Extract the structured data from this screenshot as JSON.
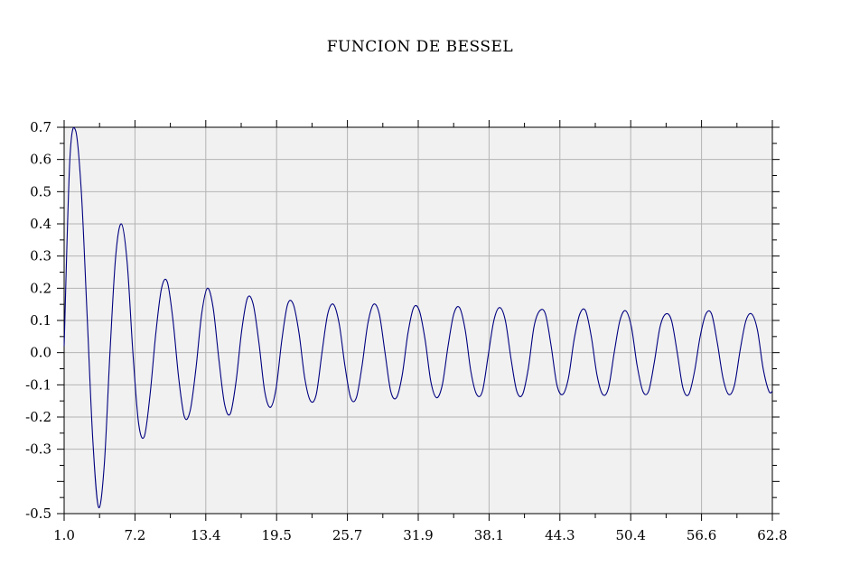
{
  "chart_data": {
    "type": "line",
    "title": "FUNCION DE BESSEL",
    "xlabel": "",
    "ylabel": "",
    "xlim": [
      1.0,
      62.8
    ],
    "ylim": [
      -0.5,
      0.7
    ],
    "x_tick_labels": [
      "1.0",
      "7.2",
      "13.4",
      "19.5",
      "25.7",
      "31.9",
      "38.1",
      "44.3",
      "50.4",
      "56.6",
      "62.8"
    ],
    "y_tick_labels": [
      "0.7",
      "0.6",
      "0.5",
      "0.4",
      "0.3",
      "0.2",
      "0.1",
      "0.0",
      "-0.1",
      "-0.2",
      "-0.3",
      "-0.5"
    ],
    "y_tick_values": [
      0.7,
      0.6,
      0.5,
      0.4,
      0.3,
      0.2,
      0.1,
      0.0,
      -0.1,
      -0.2,
      -0.3,
      -0.5
    ],
    "grid": true,
    "series": [
      {
        "color": "#000080",
        "x": [
          1.0,
          1.5,
          2.0,
          2.5,
          3.0,
          3.5,
          4.0,
          4.5,
          5.0,
          5.5,
          6.0,
          6.5,
          7.0,
          7.5,
          8.0,
          8.5,
          9.0,
          9.5,
          10.0,
          10.5,
          11.0,
          11.5,
          12.0,
          12.5,
          13.0,
          13.5,
          14.0,
          14.5,
          15.0,
          15.5,
          16.0,
          16.5,
          17.0,
          17.5,
          18.0,
          18.5,
          19.0,
          19.5,
          20.0,
          20.5,
          21.0,
          21.5,
          22.0,
          22.5,
          23.0,
          23.5,
          24.0,
          24.5,
          25.0,
          25.5,
          26.0,
          26.5,
          27.0,
          27.5,
          28.0,
          28.5,
          29.0,
          29.5,
          30.0,
          30.5,
          31.0,
          31.5,
          32.0,
          32.5,
          33.0,
          33.5,
          34.0,
          34.5,
          35.0,
          35.5,
          36.0,
          36.5,
          37.0,
          37.5,
          38.0,
          38.5,
          39.0,
          39.5,
          40.0,
          40.5,
          41.0,
          41.5,
          42.0,
          42.5,
          43.0,
          43.5,
          44.0,
          44.5,
          45.0,
          45.5,
          46.0,
          46.5,
          47.0,
          47.5,
          48.0,
          48.5,
          49.0,
          49.5,
          50.0,
          50.5,
          51.0,
          51.5,
          52.0,
          52.5,
          53.0,
          53.5,
          54.0,
          54.5,
          55.0,
          55.5,
          56.0,
          56.5,
          57.0,
          57.5,
          58.0,
          58.5,
          59.0,
          59.5,
          60.0,
          60.5,
          61.0,
          61.5,
          62.0,
          62.5,
          62.8
        ],
        "y": [
          0.02,
          0.6,
          0.69,
          0.5,
          0.12,
          -0.27,
          -0.48,
          -0.35,
          0.0,
          0.3,
          0.4,
          0.28,
          0.0,
          -0.22,
          -0.26,
          -0.13,
          0.06,
          0.2,
          0.22,
          0.1,
          -0.08,
          -0.2,
          -0.18,
          -0.05,
          0.12,
          0.2,
          0.14,
          -0.02,
          -0.16,
          -0.19,
          -0.09,
          0.07,
          0.17,
          0.15,
          0.03,
          -0.12,
          -0.17,
          -0.11,
          0.04,
          0.15,
          0.15,
          0.06,
          -0.08,
          -0.15,
          -0.13,
          0.0,
          0.12,
          0.15,
          0.09,
          -0.04,
          -0.14,
          -0.14,
          -0.04,
          0.09,
          0.15,
          0.12,
          0.0,
          -0.12,
          -0.14,
          -0.07,
          0.06,
          0.14,
          0.13,
          0.04,
          -0.09,
          -0.14,
          -0.1,
          0.02,
          0.12,
          0.14,
          0.07,
          -0.06,
          -0.13,
          -0.12,
          -0.01,
          0.1,
          0.14,
          0.1,
          -0.02,
          -0.12,
          -0.13,
          -0.05,
          0.08,
          0.13,
          0.12,
          0.02,
          -0.1,
          -0.13,
          -0.08,
          0.04,
          0.12,
          0.13,
          0.05,
          -0.07,
          -0.13,
          -0.11,
          0.0,
          0.1,
          0.13,
          0.08,
          -0.04,
          -0.12,
          -0.12,
          -0.03,
          0.08,
          0.12,
          0.1,
          0.0,
          -0.11,
          -0.13,
          -0.06,
          0.05,
          0.12,
          0.12,
          0.03,
          -0.08,
          -0.13,
          -0.1,
          0.01,
          0.1,
          0.12,
          0.07,
          -0.05,
          -0.12,
          -0.12
        ]
      }
    ]
  }
}
